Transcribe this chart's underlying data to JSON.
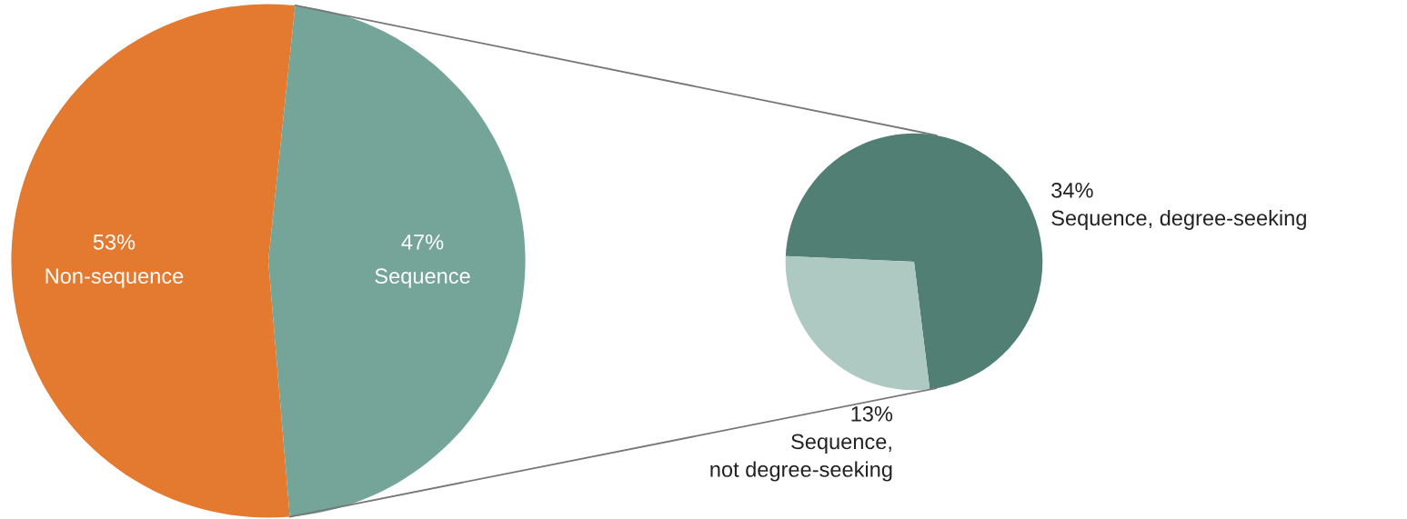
{
  "chart_data": [
    {
      "type": "pie",
      "categories": [
        "Non-sequence",
        "Sequence"
      ],
      "values": [
        53,
        47
      ],
      "colors": [
        "#e47a30",
        "#75a599"
      ],
      "value_labels": [
        "53%",
        "47%"
      ]
    },
    {
      "type": "pie",
      "categories": [
        "Sequence, degree-seeking",
        "Sequence,\nnot degree-seeking"
      ],
      "values": [
        34,
        13
      ],
      "colors": [
        "#527f73",
        "#adc9c2"
      ],
      "value_labels": [
        "34%",
        "13%"
      ]
    }
  ]
}
